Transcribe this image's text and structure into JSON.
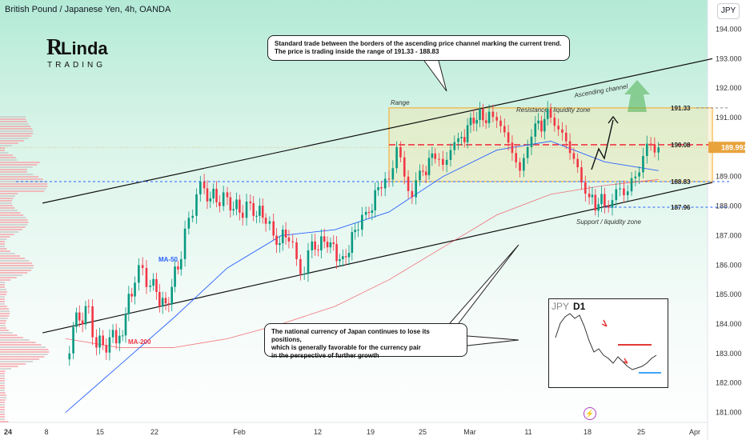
{
  "header": {
    "title": "British Pound / Japanese Yen, 4h, OANDA",
    "currency_button": "JPY"
  },
  "logo": {
    "line1": "RLinda",
    "line2": "TRADING"
  },
  "callouts": {
    "top": [
      "Standard trade between the borders of the ascending price channel marking the current trend.",
      "The price is trading inside the range of 191.33 - 188.83"
    ],
    "bottom": [
      "The national currency of Japan continues to lose its positions,",
      "which is generally favorable for the currency pair",
      "in the perspective of further growth"
    ]
  },
  "annotations": {
    "range": "Range",
    "resistance": "Resistance / liquidity zone",
    "support": "Support / liquidity zone",
    "channel": "Ascending channel",
    "ma50": "MA-50",
    "ma200": "MA-200"
  },
  "inset": {
    "title": "JPY",
    "timeframe": "D1"
  },
  "colors": {
    "up": "#089981",
    "down": "#f23645",
    "ma50": "#2962ff",
    "ma200": "#f23645",
    "range": "#f5a623",
    "accent_green": "#4caf50"
  },
  "chart_data": {
    "type": "line",
    "title": "British Pound / Japanese Yen, 4h, OANDA",
    "y_axis": {
      "ticks": [
        194.0,
        193.0,
        192.0,
        191.0,
        190.0,
        189.0,
        188.0,
        187.0,
        186.0,
        185.0,
        184.0,
        183.0,
        182.0,
        181.0
      ],
      "range": [
        180.8,
        194.8
      ]
    },
    "x_axis": {
      "ticks": [
        "24",
        "8",
        "15",
        "22",
        "Feb",
        "12",
        "19",
        "25",
        "Mar",
        "11",
        "18",
        "25",
        "Apr"
      ]
    },
    "last_price": 189.992,
    "levels": [
      {
        "label": "191.33",
        "value": 191.33
      },
      {
        "label": "190.08",
        "value": 190.08
      },
      {
        "label": "188.83",
        "value": 188.83
      },
      {
        "label": "187.96",
        "value": 187.96
      }
    ],
    "range_box": {
      "top": 191.33,
      "bottom": 188.83,
      "x_start": "Feb 12",
      "x_end": "Mar 25"
    },
    "channel": {
      "upper": [
        {
          "x": "Dec 29",
          "y": 188.1
        },
        {
          "x": "Mar 25",
          "y": 193.0
        }
      ],
      "lower": [
        {
          "x": "Dec 29",
          "y": 183.7
        },
        {
          "x": "Mar 25",
          "y": 188.8
        }
      ]
    },
    "series": [
      {
        "name": "GBPJPY",
        "points": [
          [
            "Jan 1",
            182.8
          ],
          [
            "Jan 2",
            183.9
          ],
          [
            "Jan 4",
            184.6
          ],
          [
            "Jan 5",
            183.2
          ],
          [
            "Jan 8",
            183.6
          ],
          [
            "Jan 10",
            185.4
          ],
          [
            "Jan 11",
            185.9
          ],
          [
            "Jan 12",
            185.3
          ],
          [
            "Jan 14",
            184.7
          ],
          [
            "Jan 16",
            186.2
          ],
          [
            "Jan 17",
            187.6
          ],
          [
            "Jan 18",
            188.4
          ],
          [
            "Jan 19",
            188.6
          ],
          [
            "Jan 21",
            188.0
          ],
          [
            "Jan 22",
            188.3
          ],
          [
            "Jan 24",
            187.6
          ],
          [
            "Jan 25",
            188.1
          ],
          [
            "Jan 27",
            187.4
          ],
          [
            "Jan 28",
            187.0
          ],
          [
            "Jan 30",
            186.8
          ],
          [
            "Jan 31",
            186.2
          ],
          [
            "Feb 1",
            185.7
          ],
          [
            "Feb 2",
            186.8
          ],
          [
            "Feb 4",
            186.6
          ],
          [
            "Feb 6",
            186.3
          ],
          [
            "Feb 8",
            187.2
          ],
          [
            "Feb 9",
            187.8
          ],
          [
            "Feb 11",
            188.6
          ],
          [
            "Feb 12",
            188.9
          ],
          [
            "Feb 13",
            190.0
          ],
          [
            "Feb 14",
            189.0
          ],
          [
            "Feb 15",
            188.3
          ],
          [
            "Feb 16",
            189.2
          ],
          [
            "Feb 18",
            189.6
          ],
          [
            "Feb 19",
            189.4
          ],
          [
            "Feb 20",
            189.9
          ],
          [
            "Feb 21",
            190.3
          ],
          [
            "Feb 23",
            190.8
          ],
          [
            "Feb 25",
            191.2
          ],
          [
            "Feb 26",
            190.9
          ],
          [
            "Feb 27",
            190.5
          ],
          [
            "Feb 28",
            189.8
          ],
          [
            "Feb 29",
            189.2
          ],
          [
            "Mar 1",
            190.0
          ],
          [
            "Mar 2",
            190.8
          ],
          [
            "Mar 4",
            191.0
          ],
          [
            "Mar 5",
            190.6
          ],
          [
            "Mar 6",
            190.2
          ],
          [
            "Mar 7",
            189.6
          ],
          [
            "Mar 8",
            188.8
          ],
          [
            "Mar 9",
            188.3
          ],
          [
            "Mar 11",
            188.0
          ],
          [
            "Mar 12",
            188.2
          ],
          [
            "Mar 13",
            188.6
          ],
          [
            "Mar 14",
            188.5
          ],
          [
            "Mar 15",
            189.0
          ],
          [
            "Mar 16",
            189.7
          ],
          [
            "Mar 17",
            190.1
          ],
          [
            "Mar 18",
            189.99
          ]
        ]
      },
      {
        "name": "MA-50",
        "points": [
          [
            "Jan 1",
            181.0
          ],
          [
            "Jan 8",
            182.6
          ],
          [
            "Jan 15",
            184.2
          ],
          [
            "Jan 22",
            185.9
          ],
          [
            "Jan 29",
            187.0
          ],
          [
            "Feb 5",
            187.2
          ],
          [
            "Feb 12",
            187.8
          ],
          [
            "Feb 19",
            189.0
          ],
          [
            "Feb 26",
            189.9
          ],
          [
            "Mar 4",
            190.2
          ],
          [
            "Mar 11",
            189.5
          ],
          [
            "Mar 18",
            189.2
          ]
        ]
      },
      {
        "name": "MA-200",
        "points": [
          [
            "Jan 1",
            183.5
          ],
          [
            "Jan 8",
            183.2
          ],
          [
            "Jan 15",
            183.2
          ],
          [
            "Jan 22",
            183.5
          ],
          [
            "Jan 29",
            184.0
          ],
          [
            "Feb 5",
            184.6
          ],
          [
            "Feb 12",
            185.5
          ],
          [
            "Feb 19",
            186.6
          ],
          [
            "Feb 26",
            187.7
          ],
          [
            "Mar 4",
            188.4
          ],
          [
            "Mar 11",
            188.7
          ],
          [
            "Mar 18",
            188.9
          ]
        ]
      }
    ]
  }
}
